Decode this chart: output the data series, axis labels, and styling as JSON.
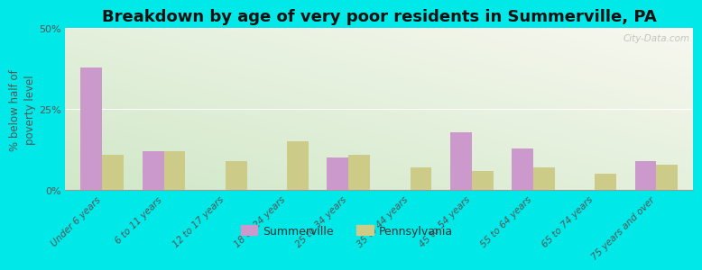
{
  "title": "Breakdown by age of very poor residents in Summerville, PA",
  "ylabel": "% below half of\npoverty level",
  "categories": [
    "Under 6 years",
    "6 to 11 years",
    "12 to 17 years",
    "18 to 24 years",
    "25 to 34 years",
    "35 to 44 years",
    "45 to 54 years",
    "55 to 64 years",
    "65 to 74 years",
    "75 years and over"
  ],
  "summerville_values": [
    38,
    12,
    0,
    0,
    10,
    0,
    18,
    13,
    0,
    9
  ],
  "pennsylvania_values": [
    11,
    12,
    9,
    15,
    11,
    7,
    6,
    7,
    5,
    8
  ],
  "summerville_color": "#cc99cc",
  "pennsylvania_color": "#cccc88",
  "background_outer": "#00e8e8",
  "background_plot_top_left": "#e8f0e0",
  "background_plot_top_right": "#f8f8f0",
  "background_plot_bottom": "#d8ecd8",
  "ylim": [
    0,
    50
  ],
  "yticks": [
    0,
    25,
    50
  ],
  "ytick_labels": [
    "0%",
    "25%",
    "50%"
  ],
  "bar_width": 0.35,
  "title_fontsize": 13,
  "axis_label_fontsize": 8.5,
  "legend_labels": [
    "Summerville",
    "Pennsylvania"
  ],
  "watermark": "City-Data.com"
}
